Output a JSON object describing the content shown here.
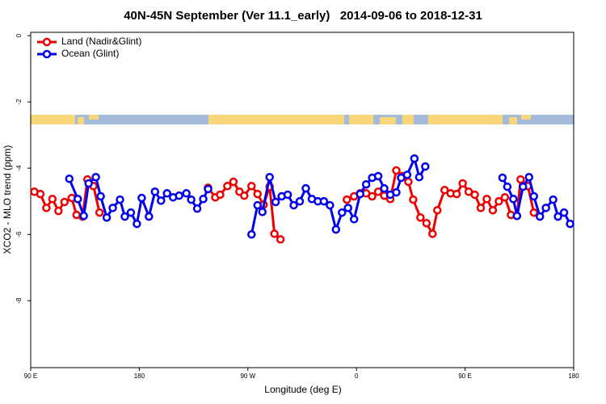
{
  "chart_data": {
    "type": "line",
    "title": "40N-45N September (Ver 11.1_early)   2014-09-06 to 2018-12-31",
    "x_label": "Longitude (deg E)",
    "y_label": "XCO2 - MLO trend (ppm)",
    "xlim": [
      90,
      540
    ],
    "ylim": [
      -10.02,
      0.1
    ],
    "xticks": [
      {
        "value": 90,
        "label": "90 E"
      },
      180,
      {
        "value": 270,
        "label": "90 W"
      },
      {
        "value": 360,
        "label": "0"
      },
      {
        "value": 450,
        "label": "90 E"
      },
      {
        "value": 540,
        "label": "180"
      }
    ],
    "yticks": [
      0,
      -2,
      -4,
      -6,
      -8
    ],
    "legend": "top-left",
    "series": [
      {
        "name": "Land (Nadir&Glint)",
        "color": "#ee0000",
        "x": [
          93,
          98,
          103,
          108,
          113,
          118,
          124,
          128,
          133,
          137,
          142,
          147,
          null,
          237,
          243,
          247,
          253,
          258,
          263,
          267,
          273,
          278,
          283,
          288,
          292,
          297,
          null,
          352,
          358,
          363,
          368,
          373,
          378,
          383,
          388,
          393,
          398,
          403,
          407,
          413,
          418,
          423,
          427,
          433,
          438,
          443,
          448,
          453,
          458,
          463,
          468,
          473,
          478,
          483,
          488,
          493,
          496,
          502,
          507
        ],
        "values": [
          -4.71,
          -4.78,
          -5.2,
          -4.93,
          -5.29,
          -5.02,
          -4.9,
          -5.41,
          -5.46,
          -4.34,
          -4.54,
          -5.34,
          null,
          -4.59,
          -4.88,
          -4.8,
          -4.54,
          -4.41,
          -4.71,
          -4.83,
          -4.54,
          -4.78,
          -5.1,
          -4.56,
          -5.98,
          -6.15,
          null,
          -4.95,
          -4.85,
          -4.76,
          -4.76,
          -4.85,
          -4.71,
          -4.83,
          -4.93,
          -4.07,
          -4.24,
          -4.41,
          -4.95,
          -5.49,
          -5.66,
          -5.98,
          -5.27,
          -4.66,
          -4.76,
          -4.78,
          -4.46,
          -4.71,
          -4.8,
          -5.2,
          -4.93,
          -5.27,
          -5.0,
          -4.88,
          -5.41,
          -5.44,
          -4.34,
          -4.54,
          -5.34
        ]
      },
      {
        "name": "Ocean (Glint)",
        "color": "#0000ee",
        "x": [
          122,
          129,
          134,
          138,
          144,
          148,
          153,
          158,
          164,
          168,
          173,
          178,
          182,
          188,
          193,
          198,
          203,
          208,
          213,
          219,
          223,
          228,
          233,
          237,
          null,
          273,
          278,
          282,
          288,
          293,
          298,
          303,
          308,
          313,
          318,
          323,
          328,
          333,
          338,
          343,
          348,
          353,
          358,
          363,
          368,
          373,
          378,
          383,
          388,
          393,
          397,
          402,
          408,
          412,
          417,
          null,
          481,
          485,
          490,
          493,
          498,
          503,
          507,
          512,
          517,
          523,
          527,
          532,
          537
        ],
        "values": [
          -4.32,
          -4.93,
          -5.44,
          -4.46,
          -4.27,
          -4.85,
          -5.49,
          -5.2,
          -4.95,
          -5.46,
          -5.34,
          -5.68,
          -4.9,
          -5.46,
          -4.71,
          -4.98,
          -4.76,
          -4.88,
          -4.83,
          -4.76,
          -4.95,
          -5.22,
          -4.93,
          -4.63,
          null,
          -6.0,
          -5.12,
          -5.32,
          -4.27,
          -5.02,
          -4.85,
          -4.8,
          -5.12,
          -5.0,
          -4.61,
          -4.93,
          -5.0,
          -5.0,
          -5.12,
          -5.85,
          -5.34,
          -5.2,
          -5.54,
          -4.78,
          -4.49,
          -4.29,
          -4.24,
          -4.61,
          -4.8,
          -4.73,
          -4.29,
          -4.2,
          -3.71,
          -4.27,
          -3.95,
          null,
          -4.29,
          -4.56,
          -4.93,
          -5.44,
          -4.56,
          -4.27,
          -4.85,
          -5.46,
          -5.2,
          -4.95,
          -5.46,
          -5.34,
          -5.68
        ]
      }
    ]
  }
}
